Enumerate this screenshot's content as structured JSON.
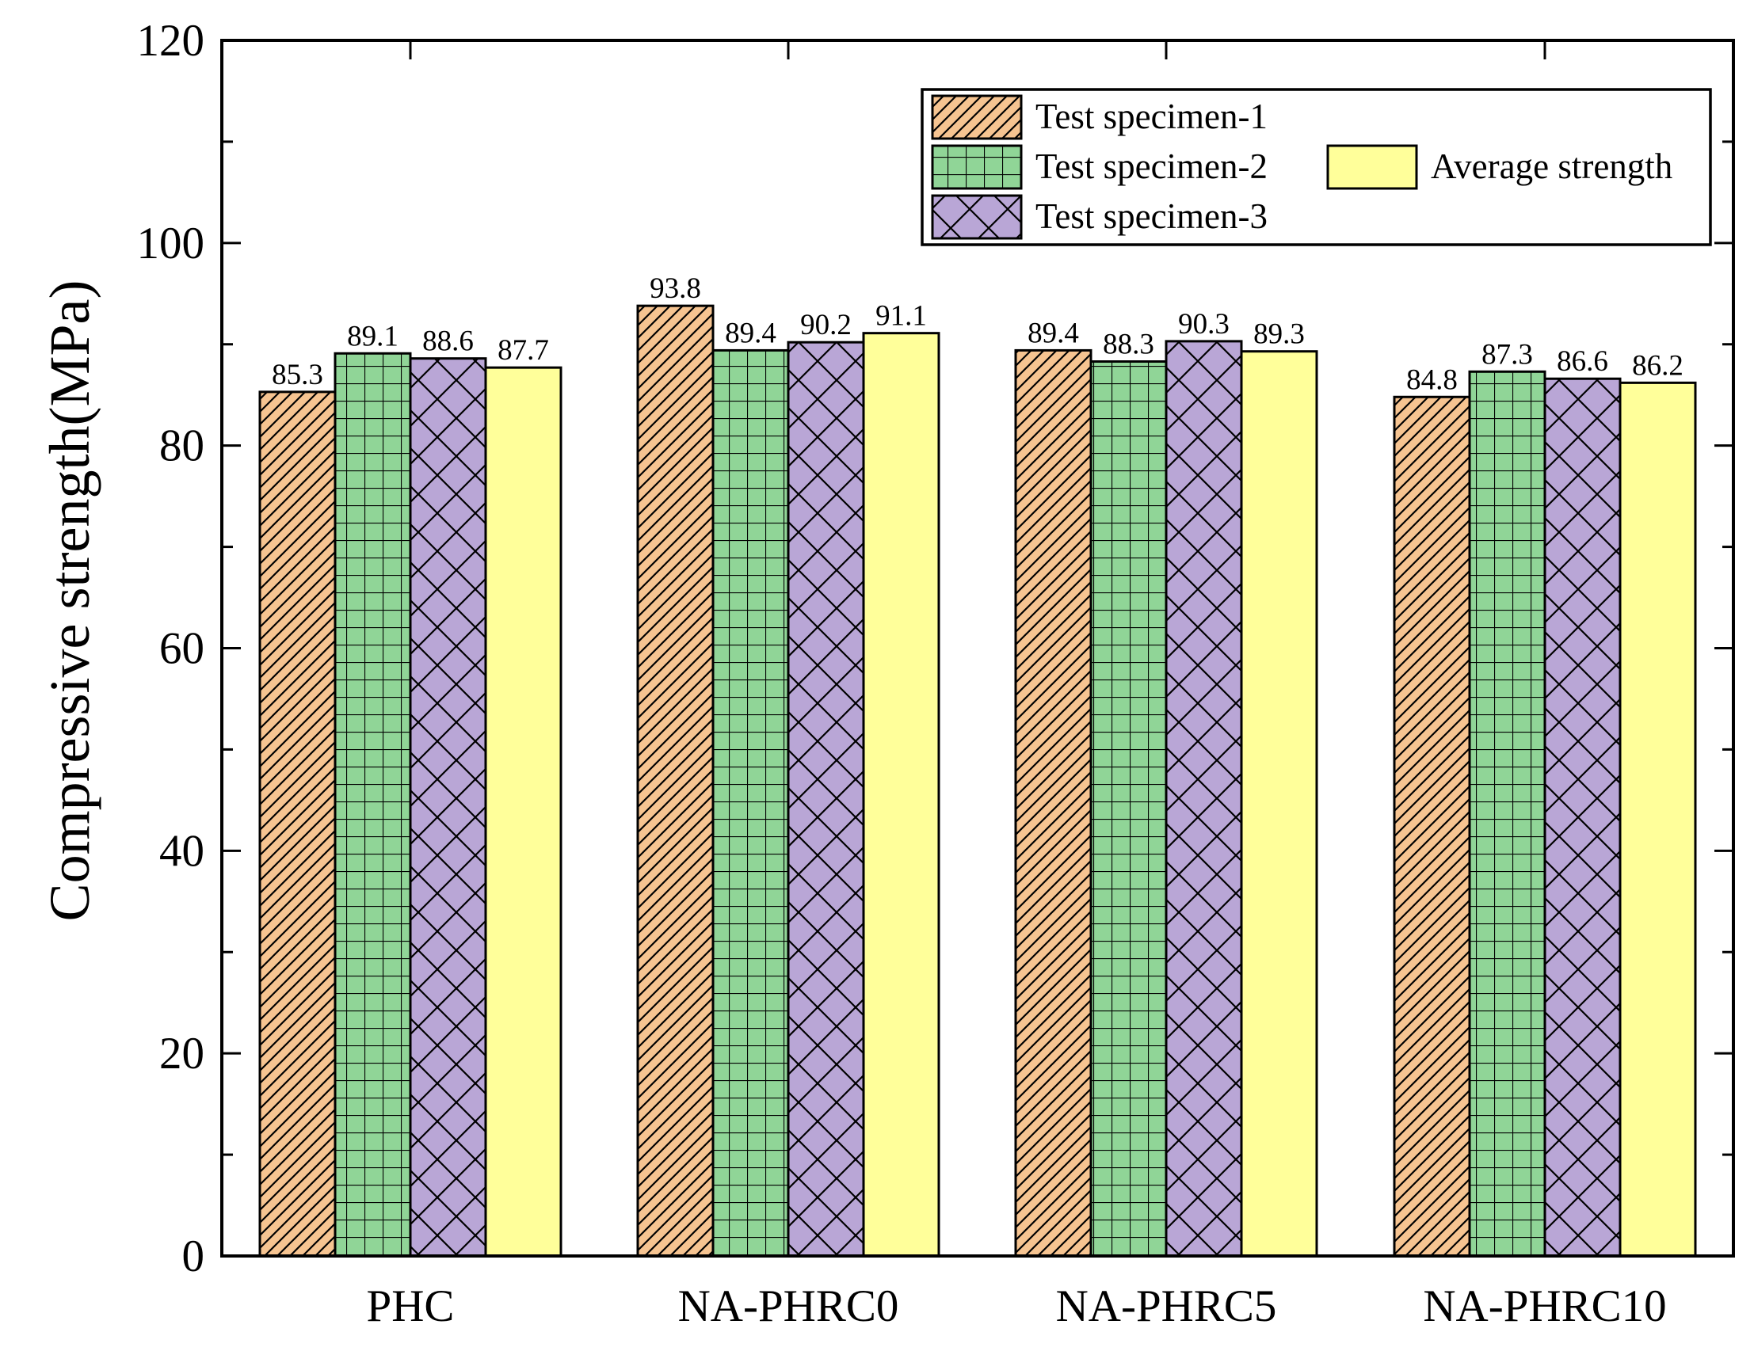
{
  "chart_data": {
    "type": "bar",
    "title": "",
    "xlabel": "",
    "ylabel": "Compressive strength(MPa)",
    "ylim": [
      0,
      120
    ],
    "yticks": [
      0,
      20,
      40,
      60,
      80,
      100,
      120
    ],
    "categories": [
      "PHC",
      "NA-PHRC0",
      "NA-PHRC5",
      "NA-PHRC10"
    ],
    "series": [
      {
        "name": "Test specimen-1",
        "values": [
          85.3,
          93.8,
          89.4,
          84.8
        ],
        "color": "#f6c491",
        "pattern": "diagonal-hatch"
      },
      {
        "name": "Test specimen-2",
        "values": [
          89.1,
          89.4,
          88.3,
          87.3
        ],
        "color": "#90d597",
        "pattern": "grid"
      },
      {
        "name": "Test specimen-3",
        "values": [
          88.6,
          90.2,
          90.3,
          86.6
        ],
        "color": "#b9a6d6",
        "pattern": "crosshatch"
      },
      {
        "name": "Average strength",
        "values": [
          87.7,
          91.1,
          89.3,
          86.2
        ],
        "color": "#ffff9a",
        "pattern": "none"
      }
    ],
    "data_labels": [
      [
        "85.3",
        "89.1",
        "88.6",
        "87.7"
      ],
      [
        "93.8",
        "89.4",
        "90.2",
        "91.1"
      ],
      [
        "89.4",
        "88.3",
        "90.3",
        "89.3"
      ],
      [
        "84.8",
        "87.3",
        "86.6",
        "86.2"
      ]
    ],
    "legend_position": "top-right",
    "grid": false
  }
}
